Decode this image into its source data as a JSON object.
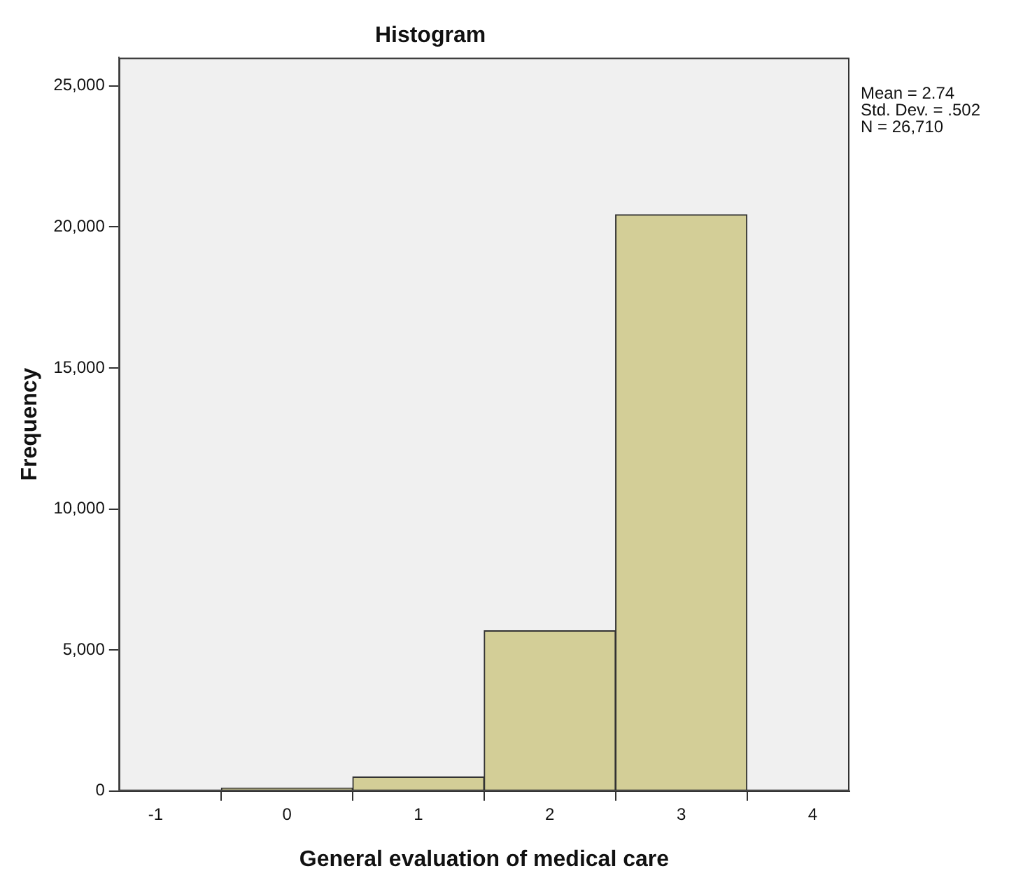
{
  "chart_data": {
    "type": "histogram",
    "title": "Histogram",
    "xlabel": "General evaluation of medical care",
    "ylabel": "Frequency",
    "bins": [
      -0.5,
      0.5,
      1.5,
      2.5,
      3.5
    ],
    "values": [
      100,
      500,
      5680,
      20430
    ],
    "color": "#d3ce97",
    "xlim": [
      -1.28,
      4.28
    ],
    "xticks": [
      -1,
      0,
      1,
      2,
      3,
      4
    ],
    "ylim": [
      0,
      26000
    ],
    "yticks": [
      {
        "value": 0,
        "label": "0"
      },
      {
        "value": 5000,
        "label": "5,000"
      },
      {
        "value": 10000,
        "label": "10,000"
      },
      {
        "value": 15000,
        "label": "15,000"
      },
      {
        "value": 20000,
        "label": "20,000"
      },
      {
        "value": 25000,
        "label": "25,000"
      }
    ],
    "annotations": [
      "Mean = 2.74",
      "Std. Dev. = .502",
      "N = 26,710"
    ]
  }
}
